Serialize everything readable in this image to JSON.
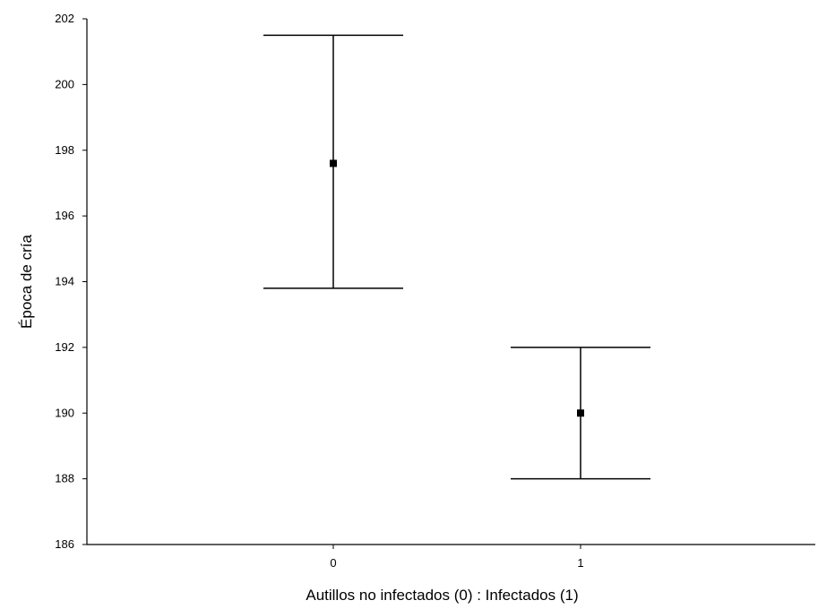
{
  "chart_data": {
    "type": "scatter",
    "subtype": "error-bar",
    "title": "",
    "xlabel": "Autillos no infectados (0) : Infectados (1)",
    "ylabel": "Época de cría",
    "categories": [
      "0",
      "1"
    ],
    "points": [
      {
        "category": "0",
        "mean": 197.6,
        "lower": 193.8,
        "upper": 201.5
      },
      {
        "category": "1",
        "mean": 190.0,
        "lower": 188.0,
        "upper": 192.0
      }
    ],
    "ylim": [
      186,
      202
    ],
    "yticks": [
      186,
      188,
      190,
      192,
      194,
      196,
      198,
      200,
      202
    ],
    "grid": false,
    "legend": "none",
    "color": "#000000"
  }
}
